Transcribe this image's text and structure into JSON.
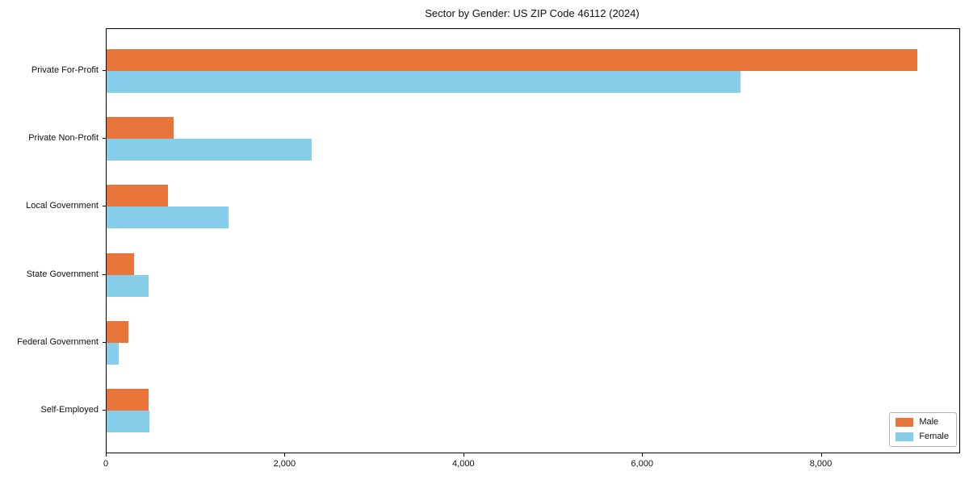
{
  "chart_data": {
    "type": "bar",
    "orientation": "horizontal",
    "title": "Sector by Gender: US ZIP Code 46112 (2024)",
    "categories": [
      "Private For-Profit",
      "Private Non-Profit",
      "Local Government",
      "State Government",
      "Federal Government",
      "Self-Employed"
    ],
    "series": [
      {
        "name": "Male",
        "color": "#E8763B",
        "values": [
          9070,
          750,
          685,
          305,
          245,
          470
        ]
      },
      {
        "name": "Female",
        "color": "#87CEEB",
        "values": [
          7090,
          2290,
          1360,
          470,
          135,
          480
        ]
      }
    ],
    "xlabel": "",
    "ylabel": "",
    "xlim": [
      0,
      9540
    ],
    "x_ticks": [
      0,
      2000,
      4000,
      6000,
      8000
    ],
    "x_tick_labels": [
      "0",
      "2,000",
      "4,000",
      "6,000",
      "8,000"
    ],
    "grid": false,
    "legend_position": "lower right",
    "colors": {
      "axis": "#000000",
      "background": "#ffffff",
      "text": "#111111"
    }
  }
}
